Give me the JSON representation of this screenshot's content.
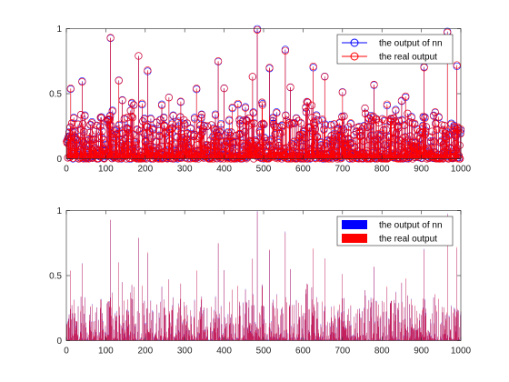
{
  "chart_data": [
    {
      "type": "stem",
      "xlim": [
        0,
        1000
      ],
      "ylim": [
        0,
        1
      ],
      "xticks": [
        "0",
        "100",
        "200",
        "300",
        "400",
        "500",
        "600",
        "700",
        "800",
        "900",
        "1000"
      ],
      "yticks": [
        "0",
        "0.5",
        "1"
      ],
      "legend_position": "top-right",
      "colors": {
        "nn": "#0000ff",
        "real": "#ff0000"
      },
      "series": [
        {
          "name": "the output of nn",
          "style": "stem-circle"
        },
        {
          "name": "the real output",
          "style": "stem-circle"
        }
      ],
      "n_points": 1000,
      "peaks": [
        {
          "x": 112,
          "y": 0.93
        },
        {
          "x": 183,
          "y": 0.79
        },
        {
          "x": 385,
          "y": 0.75
        },
        {
          "x": 484,
          "y": 0.99
        },
        {
          "x": 555,
          "y": 0.83
        },
        {
          "x": 966,
          "y": 0.97
        },
        {
          "x": 11,
          "y": 0.54
        },
        {
          "x": 40,
          "y": 0.59
        },
        {
          "x": 133,
          "y": 0.6
        },
        {
          "x": 206,
          "y": 0.68
        },
        {
          "x": 260,
          "y": 0.47
        },
        {
          "x": 330,
          "y": 0.54
        },
        {
          "x": 400,
          "y": 0.54
        },
        {
          "x": 472,
          "y": 0.63
        },
        {
          "x": 515,
          "y": 0.7
        },
        {
          "x": 626,
          "y": 0.71
        },
        {
          "x": 655,
          "y": 0.63
        },
        {
          "x": 780,
          "y": 0.57
        },
        {
          "x": 907,
          "y": 0.7
        },
        {
          "x": 990,
          "y": 0.72
        },
        {
          "x": 860,
          "y": 0.48
        },
        {
          "x": 700,
          "y": 0.51
        },
        {
          "x": 568,
          "y": 0.55
        }
      ]
    },
    {
      "type": "bar",
      "xlim": [
        0,
        1000
      ],
      "ylim": [
        0,
        1
      ],
      "xticks": [
        "0",
        "100",
        "200",
        "300",
        "400",
        "500",
        "600",
        "700",
        "800",
        "900",
        "1000"
      ],
      "yticks": [
        "0",
        "0.5",
        "1"
      ],
      "legend_position": "top-right",
      "colors": {
        "nn": "#0000ff",
        "real": "#ff0000"
      },
      "series": [
        {
          "name": "the output of nn"
        },
        {
          "name": "the real output"
        }
      ],
      "n_points": 1000
    }
  ]
}
